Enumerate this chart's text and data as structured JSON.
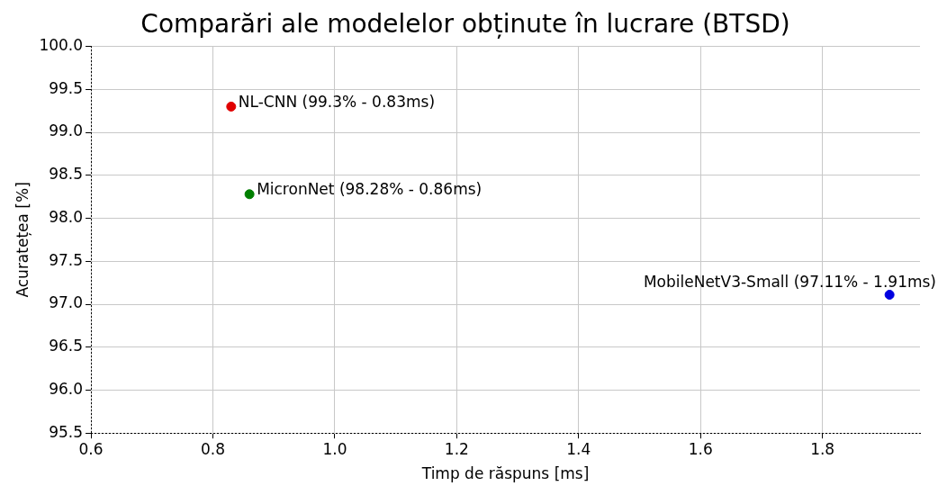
{
  "chart_data": {
    "type": "scatter",
    "title": "Comparări ale modelelor obținute în lucrare (BTSD)",
    "xlabel": "Timp de răspuns [ms]",
    "ylabel": "Acuratețea [%]",
    "series": [
      {
        "color": "#e00000",
        "x": [
          0.83
        ],
        "values": [
          99.3
        ]
      },
      {
        "color": "#007f00",
        "x": [
          0.86
        ],
        "values": [
          98.28
        ]
      },
      {
        "color": "#0000e0",
        "x": [
          1.91
        ],
        "values": [
          97.11
        ]
      }
    ],
    "annotations": [
      {
        "text": "NL-CNN (99.3% - 0.83ms)",
        "x": 0.83,
        "y": 99.3
      },
      {
        "text": "MicronNet (98.28% - 0.86ms)",
        "x": 0.86,
        "y": 98.28
      },
      {
        "text": "MobileNetV3-Small (97.11% - 1.91ms)",
        "x": 1.91,
        "y": 97.11
      }
    ],
    "xlim": [
      0.6,
      1.96
    ],
    "xticks": [
      0.6,
      0.8,
      {
        "value": 1,
        "label": "1.0"
      },
      1.2,
      1.4,
      1.6,
      1.8
    ],
    "ylim": [
      95.5,
      100
    ],
    "yticks": [
      95.5,
      {
        "value": 96,
        "label": "96.0"
      },
      96.5,
      {
        "value": 97,
        "label": "97.0"
      },
      97.5,
      {
        "value": 98,
        "label": "98.0"
      },
      98.5,
      {
        "value": 99,
        "label": "99.0"
      },
      99.5,
      {
        "value": 100,
        "label": "100.0"
      }
    ],
    "grid": true,
    "marker": "circle",
    "legend": false
  }
}
